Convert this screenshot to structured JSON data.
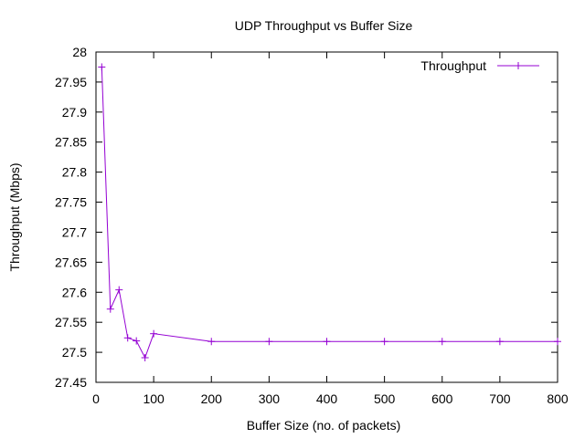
{
  "chart_data": {
    "type": "line",
    "title": "UDP Throughput vs Buffer Size",
    "xlabel": "Buffer Size (no. of packets)",
    "ylabel": "Throughput (Mbps)",
    "xlim": [
      0,
      800
    ],
    "ylim": [
      27.45,
      28
    ],
    "xticks": [
      "0",
      "100",
      "200",
      "300",
      "400",
      "500",
      "600",
      "700",
      "800"
    ],
    "yticks": [
      "27.45",
      "27.5",
      "27.55",
      "27.6",
      "27.65",
      "27.7",
      "27.75",
      "27.8",
      "27.85",
      "27.9",
      "27.95",
      "28"
    ],
    "grid": false,
    "legend_position": "top-right",
    "series": [
      {
        "name": "Throughput",
        "color": "#9400d3",
        "marker": "plus",
        "x": [
          10,
          25,
          40,
          55,
          70,
          85,
          100,
          200,
          300,
          400,
          500,
          600,
          700,
          800
        ],
        "y": [
          27.975,
          27.572,
          27.604,
          27.524,
          27.519,
          27.491,
          27.531,
          27.518,
          27.518,
          27.518,
          27.518,
          27.518,
          27.518,
          27.518
        ]
      }
    ]
  }
}
